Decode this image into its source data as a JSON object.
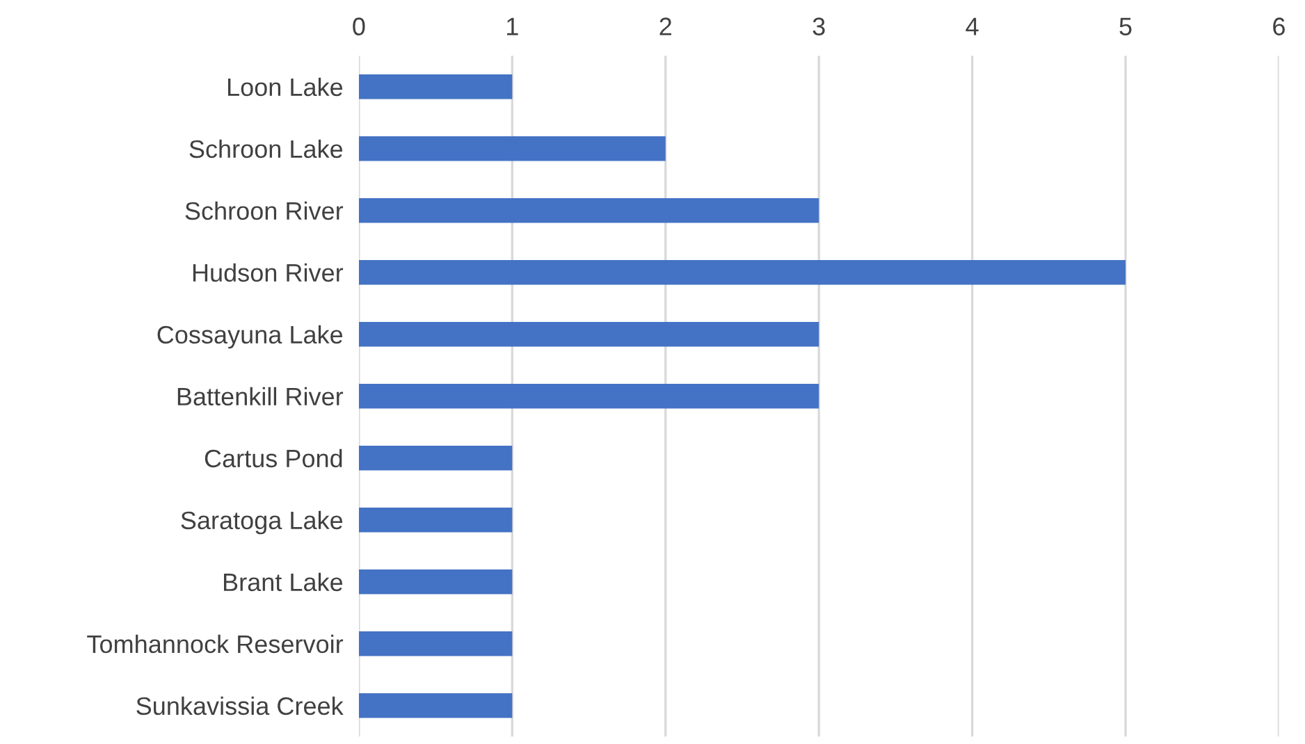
{
  "chart_data": {
    "type": "bar",
    "orientation": "horizontal",
    "categories": [
      "Loon Lake",
      "Schroon Lake",
      "Schroon River",
      "Hudson River",
      "Cossayuna Lake",
      "Battenkill River",
      "Cartus Pond",
      "Saratoga Lake",
      "Brant Lake",
      "Tomhannock Reservoir",
      "Sunkavissia Creek"
    ],
    "values": [
      1,
      2,
      3,
      5,
      3,
      3,
      1,
      1,
      1,
      1,
      1
    ],
    "color": "#4472c4",
    "xlim": [
      0,
      6
    ],
    "xticks": [
      0,
      1,
      2,
      3,
      4,
      5,
      6
    ],
    "grid": "x"
  }
}
